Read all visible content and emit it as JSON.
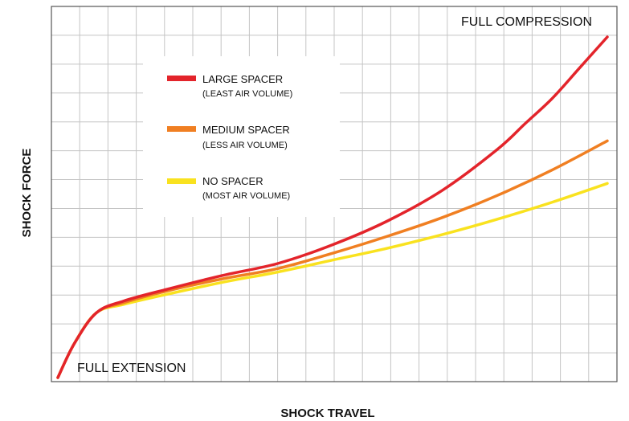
{
  "chart_data": {
    "type": "line",
    "xlabel": "SHOCK TRAVEL",
    "ylabel": "SHOCK FORCE",
    "xlim": [
      0,
      100
    ],
    "ylim": [
      0,
      100
    ],
    "grid": true,
    "legend_position": "top-left",
    "annotations": {
      "top_right": "FULL COMPRESSION",
      "bottom_left": "FULL EXTENSION"
    },
    "series": [
      {
        "name": "LARGE SPACER",
        "subtitle": "(LEAST AIR VOLUME)",
        "color": "#E3242B",
        "x": [
          0,
          3,
          7,
          12,
          20,
          30,
          40,
          50,
          60,
          70,
          80,
          85,
          90,
          95,
          100
        ],
        "y": [
          0,
          10,
          19,
          22.5,
          26,
          30,
          33.5,
          39,
          46,
          55,
          67,
          74.5,
          82,
          91,
          100
        ]
      },
      {
        "name": "MEDIUM SPACER",
        "subtitle": "(LESS AIR VOLUME)",
        "color": "#F07F22",
        "x": [
          0,
          3,
          7,
          12,
          20,
          30,
          40,
          50,
          60,
          70,
          80,
          90,
          100
        ],
        "y": [
          0,
          10,
          19,
          22,
          25.5,
          29,
          32,
          36.5,
          41.5,
          47,
          53.5,
          61,
          69.5
        ]
      },
      {
        "name": "NO SPACER",
        "subtitle": "(MOST AIR VOLUME)",
        "color": "#F9E21F",
        "x": [
          0,
          3,
          7,
          12,
          20,
          30,
          40,
          50,
          60,
          70,
          80,
          90,
          100
        ],
        "y": [
          0,
          10,
          19,
          21.5,
          24.5,
          28,
          31,
          34.5,
          38,
          42,
          46.5,
          51.5,
          57
        ]
      }
    ]
  }
}
